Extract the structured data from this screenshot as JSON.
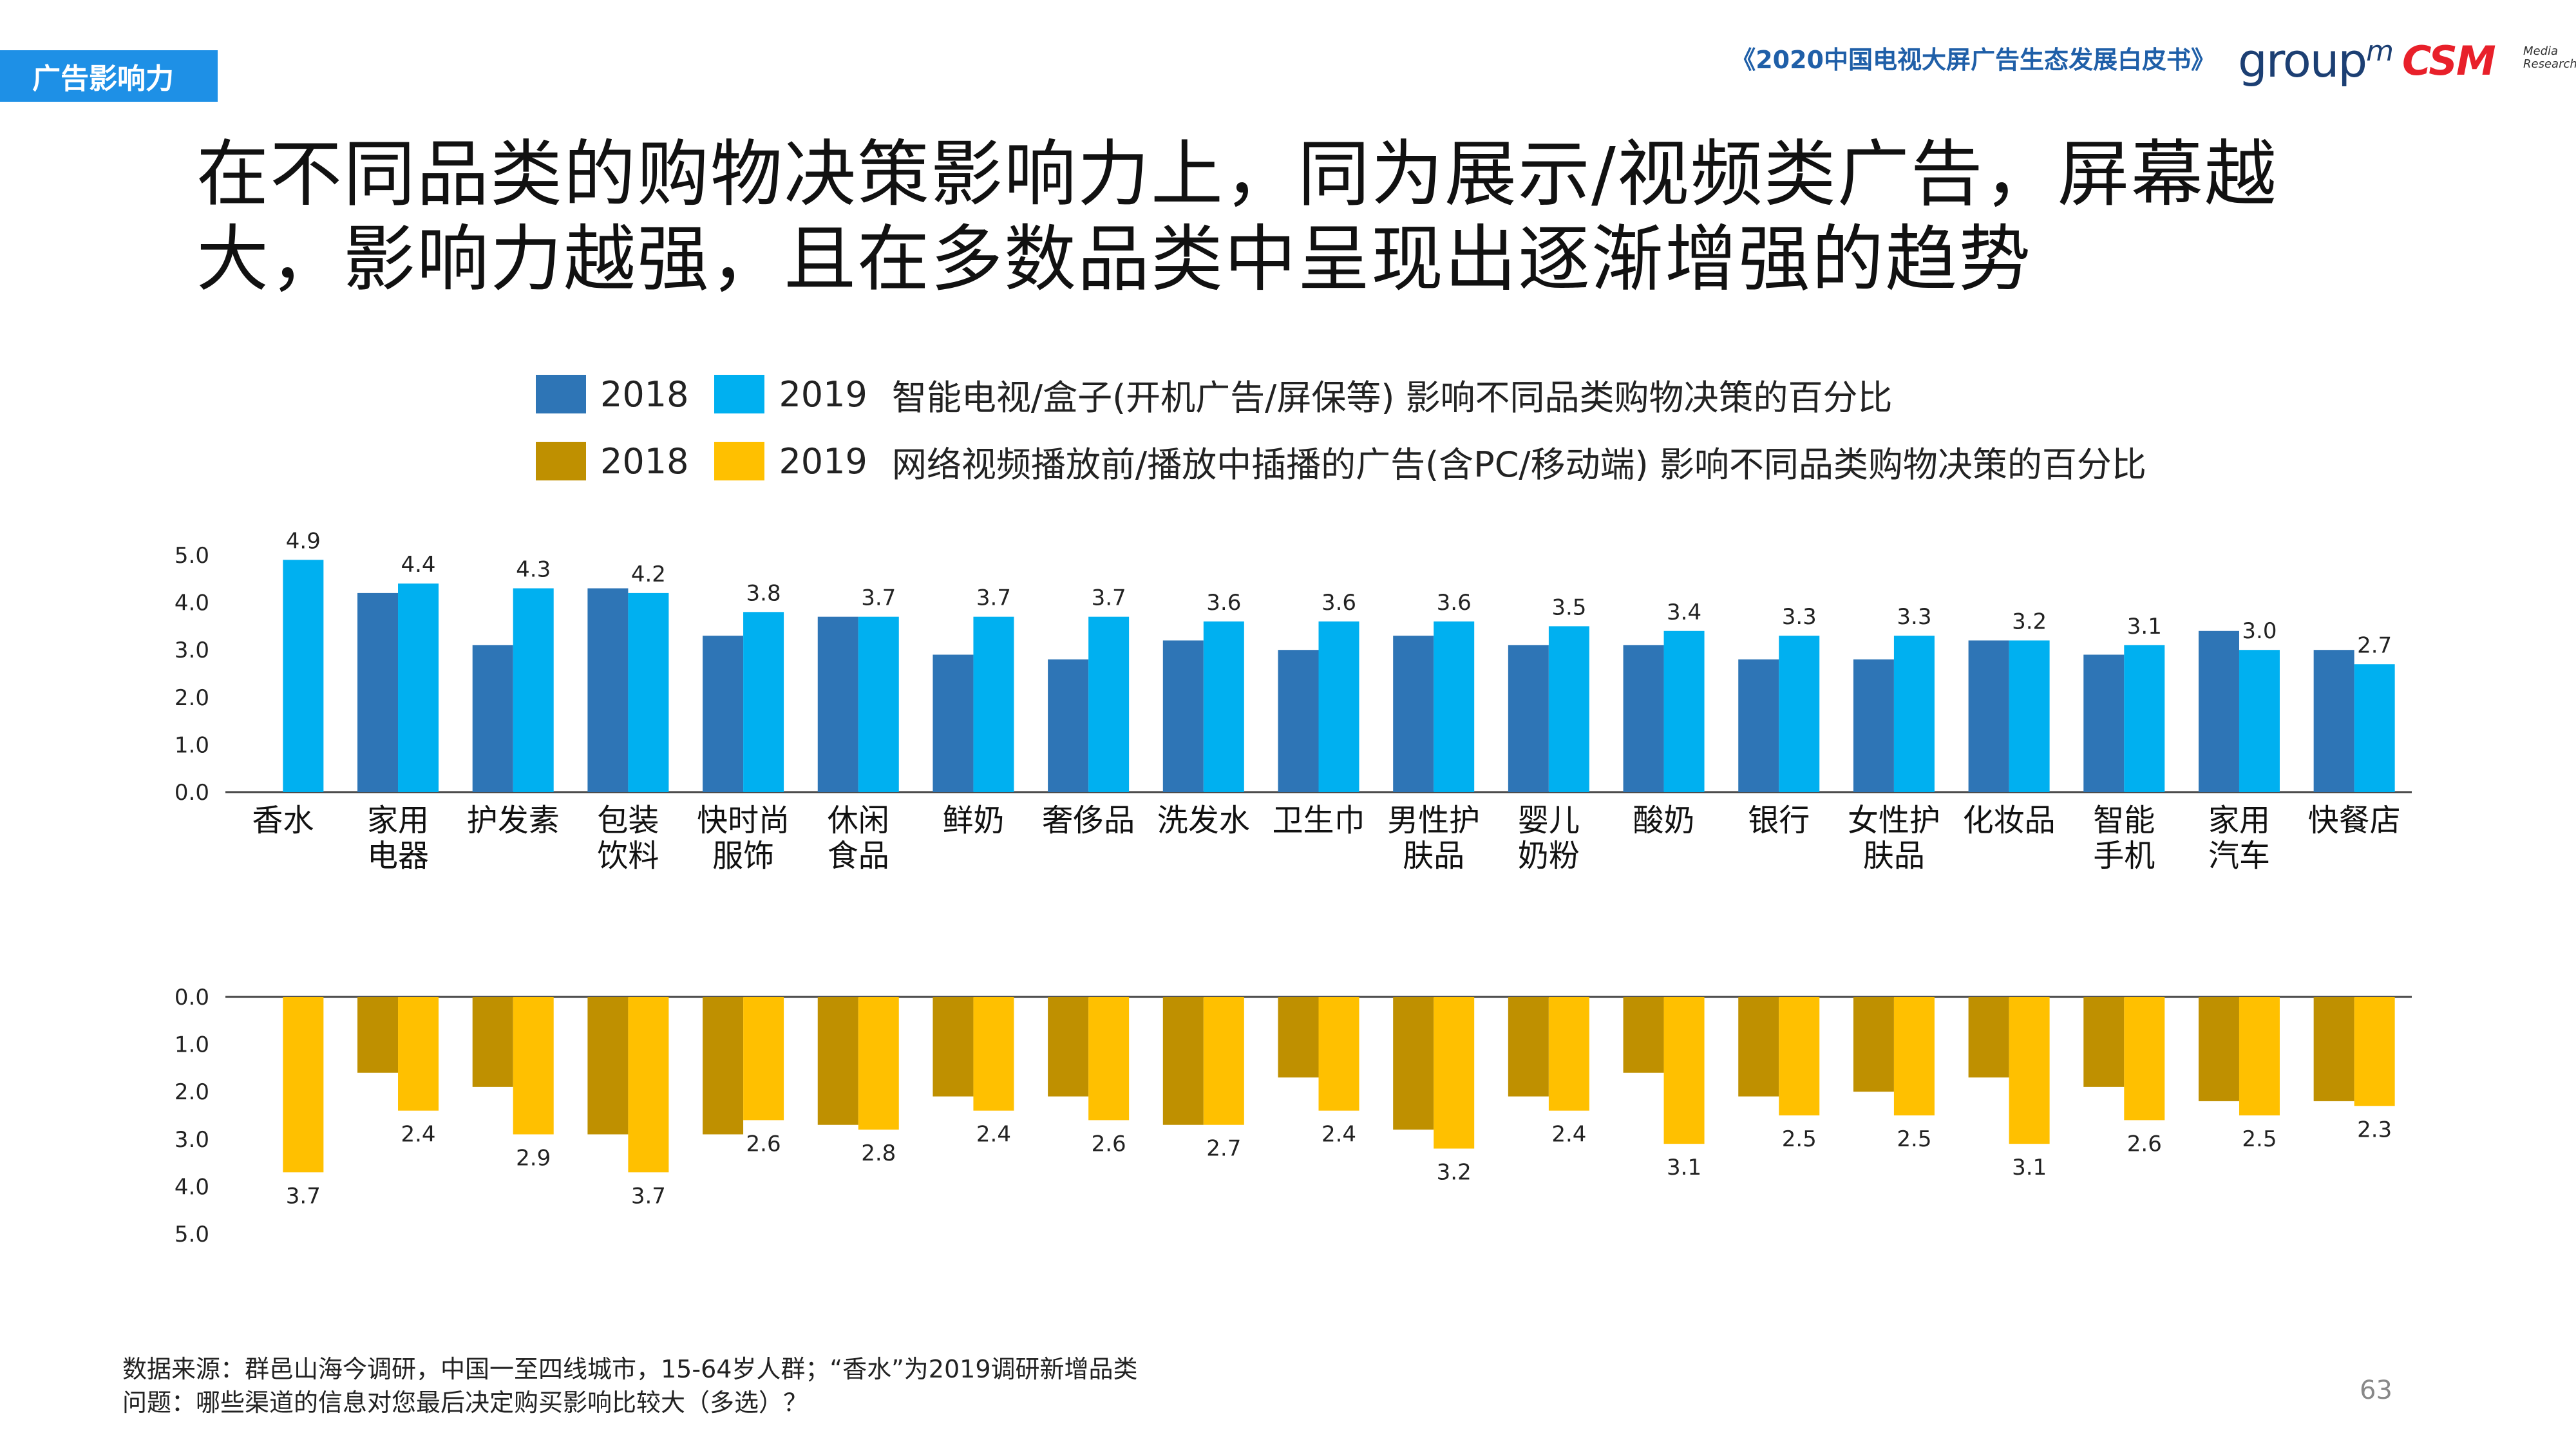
{
  "header": {
    "section_tag": "广告影响力",
    "report_title": "《2020中国电视大屏广告生态发展白皮书》",
    "logo_groupm": "group",
    "logo_groupm_sup": "m",
    "logo_csm": "CSM",
    "logo_csm_sub1": "Media",
    "logo_csm_sub2": "Research"
  },
  "headline": {
    "line1": "在不同品类的购物决策影响力上，同为展示/视频类广告，屏幕越",
    "line2": "大，影响力越强，且在多数品类中呈现出逐渐增强的趋势"
  },
  "legend": {
    "row1": {
      "label_a": "2018",
      "label_b": "2019",
      "desc": "智能电视/盒子(开机广告/屏保等) 影响不同品类购物决策的百分比"
    },
    "row2": {
      "label_a": "2018",
      "label_b": "2019",
      "desc": "网络视频播放前/播放中插播的广告(含PC/移动端) 影响不同品类购物决策的百分比"
    }
  },
  "colors": {
    "tv_2018": "#2e75b6",
    "tv_2019": "#00b0f0",
    "video_2018": "#bf9000",
    "video_2019": "#ffc000",
    "tag_bg": "#1e90e6"
  },
  "chart_data": [
    {
      "type": "bar",
      "categories": [
        [
          "香水"
        ],
        [
          "家用",
          "电器"
        ],
        [
          "护发素"
        ],
        [
          "包装",
          "饮料"
        ],
        [
          "快时尚",
          "服饰"
        ],
        [
          "休闲",
          "食品"
        ],
        [
          "鲜奶"
        ],
        [
          "奢侈品"
        ],
        [
          "洗发水"
        ],
        [
          "卫生巾"
        ],
        [
          "男性护",
          "肤品"
        ],
        [
          "婴儿",
          "奶粉"
        ],
        [
          "酸奶"
        ],
        [
          "银行"
        ],
        [
          "女性护",
          "肤品"
        ],
        [
          "化妆品"
        ],
        [
          "智能",
          "手机"
        ],
        [
          "家用",
          "汽车"
        ],
        [
          "快餐店"
        ]
      ],
      "series": [
        {
          "name": "2018",
          "values": [
            null,
            4.2,
            3.1,
            4.3,
            3.3,
            3.7,
            2.9,
            2.8,
            3.2,
            3.0,
            3.3,
            3.1,
            3.1,
            2.8,
            2.8,
            3.2,
            2.9,
            3.4,
            3.0
          ]
        },
        {
          "name": "2019",
          "values": [
            4.9,
            4.4,
            4.3,
            4.2,
            3.8,
            3.7,
            3.7,
            3.7,
            3.6,
            3.6,
            3.6,
            3.5,
            3.4,
            3.3,
            3.3,
            3.2,
            3.1,
            3.0,
            2.7
          ]
        }
      ],
      "data_labels": [
        "4.9",
        "4.4",
        "4.3",
        "4.2",
        "3.8",
        "3.7",
        "3.7",
        "3.7",
        "3.6",
        "3.6",
        "3.6",
        "3.5",
        "3.4",
        "3.3",
        "3.3",
        "3.2",
        "3.1",
        "3.0",
        "2.7"
      ],
      "ylim": [
        0,
        5
      ],
      "yticks": [
        "0.0",
        "1.0",
        "2.0",
        "3.0",
        "4.0",
        "5.0"
      ]
    },
    {
      "type": "bar",
      "orientation": "downward",
      "series": [
        {
          "name": "2018",
          "values": [
            null,
            1.6,
            1.9,
            2.9,
            2.9,
            2.7,
            2.1,
            2.1,
            2.7,
            1.7,
            2.8,
            2.1,
            1.6,
            2.1,
            2.0,
            1.7,
            1.9,
            2.2,
            2.2
          ]
        },
        {
          "name": "2019",
          "values": [
            3.7,
            2.4,
            2.9,
            3.7,
            2.6,
            2.8,
            2.4,
            2.6,
            2.7,
            2.4,
            3.2,
            2.4,
            3.1,
            2.5,
            2.5,
            3.1,
            2.6,
            2.5,
            2.3
          ]
        }
      ],
      "data_labels": [
        "3.7",
        "2.4",
        "2.9",
        "3.7",
        "2.6",
        "2.8",
        "2.4",
        "2.6",
        "2.7",
        "2.4",
        "3.2",
        "2.4",
        "3.1",
        "2.5",
        "2.5",
        "3.1",
        "2.6",
        "2.5",
        "2.3"
      ],
      "ylim": [
        0,
        5
      ],
      "yticks": [
        "0.0",
        "1.0",
        "2.0",
        "3.0",
        "4.0",
        "5.0"
      ]
    }
  ],
  "footer": {
    "source_line1": "数据来源：群邑山海今调研，中国一至四线城市，15-64岁人群；“香水”为2019调研新增品类",
    "source_line2": "问题：哪些渠道的信息对您最后决定购买影响比较大（多选）？",
    "page_number": "63"
  }
}
